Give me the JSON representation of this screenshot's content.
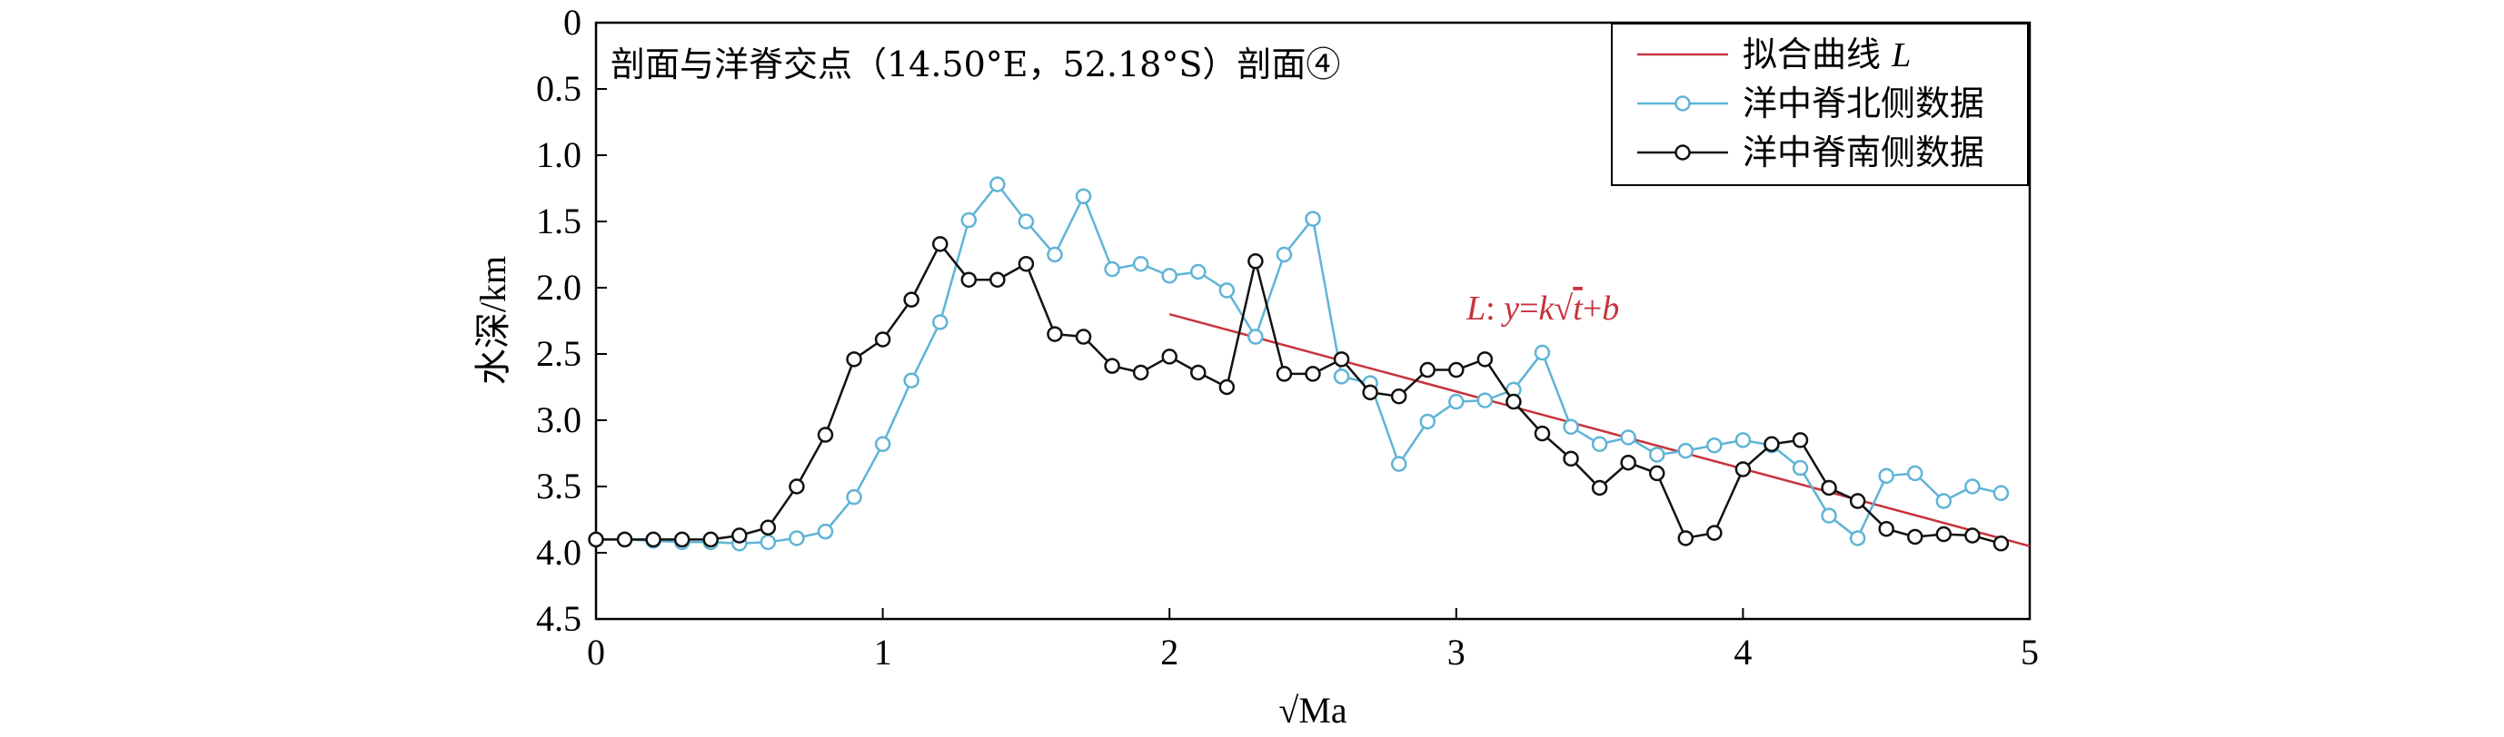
{
  "chart_data": {
    "type": "line",
    "title": "剖面与洋脊交点（14.50°E，52.18°S）剖面④",
    "xlabel": "√Ma",
    "ylabel": "水深/km",
    "xlim": [
      0,
      5
    ],
    "ylim": [
      0,
      4.5
    ],
    "y_inverted": true,
    "xticks": [
      "0",
      "1",
      "2",
      "3",
      "4",
      "5"
    ],
    "yticks": [
      "0",
      "0.5",
      "1.0",
      "1.5",
      "2.0",
      "2.5",
      "3.0",
      "3.5",
      "4.0",
      "4.5"
    ],
    "legend_position": "top-right",
    "series": [
      {
        "name": "拟合曲线 L",
        "style": "line",
        "color": "#c8323c",
        "points": [
          [
            2.0,
            2.2
          ],
          [
            5.0,
            3.95
          ]
        ]
      },
      {
        "name": "洋中脊北侧数据",
        "style": "line-marker",
        "color": "#5fb4d6",
        "points": [
          [
            0.0,
            3.9
          ],
          [
            0.1,
            3.9
          ],
          [
            0.2,
            3.91
          ],
          [
            0.3,
            3.92
          ],
          [
            0.4,
            3.92
          ],
          [
            0.5,
            3.93
          ],
          [
            0.6,
            3.92
          ],
          [
            0.7,
            3.89
          ],
          [
            0.8,
            3.84
          ],
          [
            0.9,
            3.58
          ],
          [
            1.0,
            3.18
          ],
          [
            1.1,
            2.7
          ],
          [
            1.2,
            2.26
          ],
          [
            1.3,
            1.49
          ],
          [
            1.4,
            1.22
          ],
          [
            1.5,
            1.5
          ],
          [
            1.6,
            1.75
          ],
          [
            1.7,
            1.31
          ],
          [
            1.8,
            1.86
          ],
          [
            1.9,
            1.82
          ],
          [
            2.0,
            1.91
          ],
          [
            2.1,
            1.88
          ],
          [
            2.2,
            2.02
          ],
          [
            2.3,
            2.37
          ],
          [
            2.4,
            1.75
          ],
          [
            2.5,
            1.48
          ],
          [
            2.6,
            2.67
          ],
          [
            2.7,
            2.72
          ],
          [
            2.8,
            3.33
          ],
          [
            2.9,
            3.01
          ],
          [
            3.0,
            2.86
          ],
          [
            3.1,
            2.85
          ],
          [
            3.2,
            2.77
          ],
          [
            3.3,
            2.49
          ],
          [
            3.4,
            3.05
          ],
          [
            3.5,
            3.18
          ],
          [
            3.6,
            3.13
          ],
          [
            3.7,
            3.26
          ],
          [
            3.8,
            3.23
          ],
          [
            3.9,
            3.19
          ],
          [
            4.0,
            3.15
          ],
          [
            4.1,
            3.19
          ],
          [
            4.2,
            3.36
          ],
          [
            4.3,
            3.72
          ],
          [
            4.4,
            3.89
          ],
          [
            4.5,
            3.42
          ],
          [
            4.6,
            3.4
          ],
          [
            4.7,
            3.61
          ],
          [
            4.8,
            3.5
          ],
          [
            4.9,
            3.55
          ]
        ]
      },
      {
        "name": "洋中脊南侧数据",
        "style": "line-marker",
        "color": "#111111",
        "points": [
          [
            0.0,
            3.9
          ],
          [
            0.1,
            3.9
          ],
          [
            0.2,
            3.9
          ],
          [
            0.3,
            3.9
          ],
          [
            0.4,
            3.9
          ],
          [
            0.5,
            3.87
          ],
          [
            0.6,
            3.81
          ],
          [
            0.7,
            3.5
          ],
          [
            0.8,
            3.11
          ],
          [
            0.9,
            2.54
          ],
          [
            1.0,
            2.39
          ],
          [
            1.1,
            2.09
          ],
          [
            1.2,
            1.67
          ],
          [
            1.3,
            1.94
          ],
          [
            1.4,
            1.94
          ],
          [
            1.5,
            1.82
          ],
          [
            1.6,
            2.35
          ],
          [
            1.7,
            2.37
          ],
          [
            1.8,
            2.59
          ],
          [
            1.9,
            2.64
          ],
          [
            2.0,
            2.52
          ],
          [
            2.1,
            2.64
          ],
          [
            2.2,
            2.75
          ],
          [
            2.3,
            1.8
          ],
          [
            2.4,
            2.65
          ],
          [
            2.5,
            2.65
          ],
          [
            2.6,
            2.54
          ],
          [
            2.7,
            2.79
          ],
          [
            2.8,
            2.82
          ],
          [
            2.9,
            2.62
          ],
          [
            3.0,
            2.62
          ],
          [
            3.1,
            2.54
          ],
          [
            3.2,
            2.86
          ],
          [
            3.3,
            3.1
          ],
          [
            3.4,
            3.29
          ],
          [
            3.5,
            3.51
          ],
          [
            3.6,
            3.32
          ],
          [
            3.7,
            3.4
          ],
          [
            3.8,
            3.89
          ],
          [
            3.9,
            3.85
          ],
          [
            4.0,
            3.37
          ],
          [
            4.1,
            3.18
          ],
          [
            4.2,
            3.15
          ],
          [
            4.3,
            3.51
          ],
          [
            4.4,
            3.61
          ],
          [
            4.5,
            3.82
          ],
          [
            4.6,
            3.88
          ],
          [
            4.7,
            3.86
          ],
          [
            4.8,
            3.87
          ],
          [
            4.9,
            3.93
          ]
        ]
      }
    ],
    "annotations": [
      {
        "text": "L: y = k√t + b",
        "color": "#c8323c",
        "at": [
          2.2,
          2.13
        ]
      }
    ]
  }
}
